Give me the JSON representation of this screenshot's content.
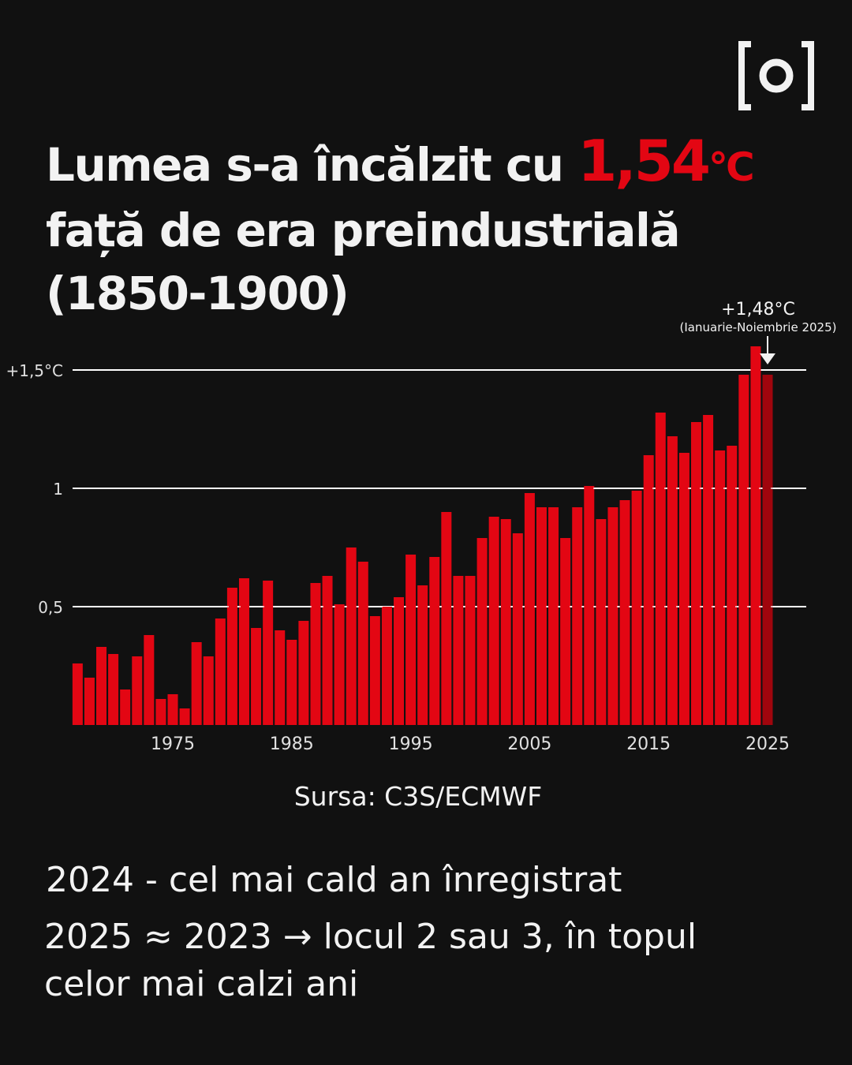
{
  "logo": {
    "text": "[o]"
  },
  "title": {
    "part1": "Lumea s-a încălzit cu ",
    "highlight": "1,54",
    "unit": "°C",
    "line2": "față de era preindustrială",
    "line3": "(1850-1900)"
  },
  "chart_data": {
    "type": "bar",
    "title": "Lumea s-a încălzit cu 1,54°C față de era preindustrială (1850-1900)",
    "xlabel": "",
    "ylabel": "°C",
    "ylim": [
      0,
      1.6
    ],
    "yticks": [
      {
        "value": 0.5,
        "label": "0,5"
      },
      {
        "value": 1,
        "label": "1"
      },
      {
        "value": 1.5,
        "label": "+1,5°C"
      }
    ],
    "xticks": [
      "1975",
      "1985",
      "1995",
      "2005",
      "2015",
      "2025"
    ],
    "years": [
      1967,
      1968,
      1969,
      1970,
      1971,
      1972,
      1973,
      1974,
      1975,
      1976,
      1977,
      1978,
      1979,
      1980,
      1981,
      1982,
      1983,
      1984,
      1985,
      1986,
      1987,
      1988,
      1989,
      1990,
      1991,
      1992,
      1993,
      1994,
      1995,
      1996,
      1997,
      1998,
      1999,
      2000,
      2001,
      2002,
      2003,
      2004,
      2005,
      2006,
      2007,
      2008,
      2009,
      2010,
      2011,
      2012,
      2013,
      2014,
      2015,
      2016,
      2017,
      2018,
      2019,
      2020,
      2021,
      2022,
      2023,
      2024,
      2025
    ],
    "values": [
      0.26,
      0.2,
      0.33,
      0.3,
      0.15,
      0.29,
      0.38,
      0.11,
      0.13,
      0.07,
      0.35,
      0.29,
      0.45,
      0.58,
      0.62,
      0.41,
      0.61,
      0.4,
      0.36,
      0.44,
      0.6,
      0.63,
      0.51,
      0.75,
      0.69,
      0.46,
      0.5,
      0.54,
      0.72,
      0.59,
      0.71,
      0.9,
      0.63,
      0.63,
      0.79,
      0.88,
      0.87,
      0.81,
      0.98,
      0.92,
      0.92,
      0.79,
      0.92,
      1.01,
      0.87,
      0.92,
      0.95,
      0.99,
      1.14,
      1.32,
      1.22,
      1.15,
      1.28,
      1.31,
      1.16,
      1.18,
      1.48,
      1.6,
      1.48
    ],
    "annotation": {
      "year": 2025,
      "label": "+1,48°C",
      "sublabel": "(Ianuarie-Noiembrie 2025)"
    },
    "colors": {
      "bar": "#e30613",
      "highlight_bar": "#a0050d",
      "grid": "#ffffff"
    }
  },
  "source": "Sursa: C3S/ECMWF",
  "notes": [
    "2024 - cel mai cald an înregistrat",
    "2025 ≈ 2023 → locul 2 sau 3, în topul celor mai calzi ani"
  ]
}
